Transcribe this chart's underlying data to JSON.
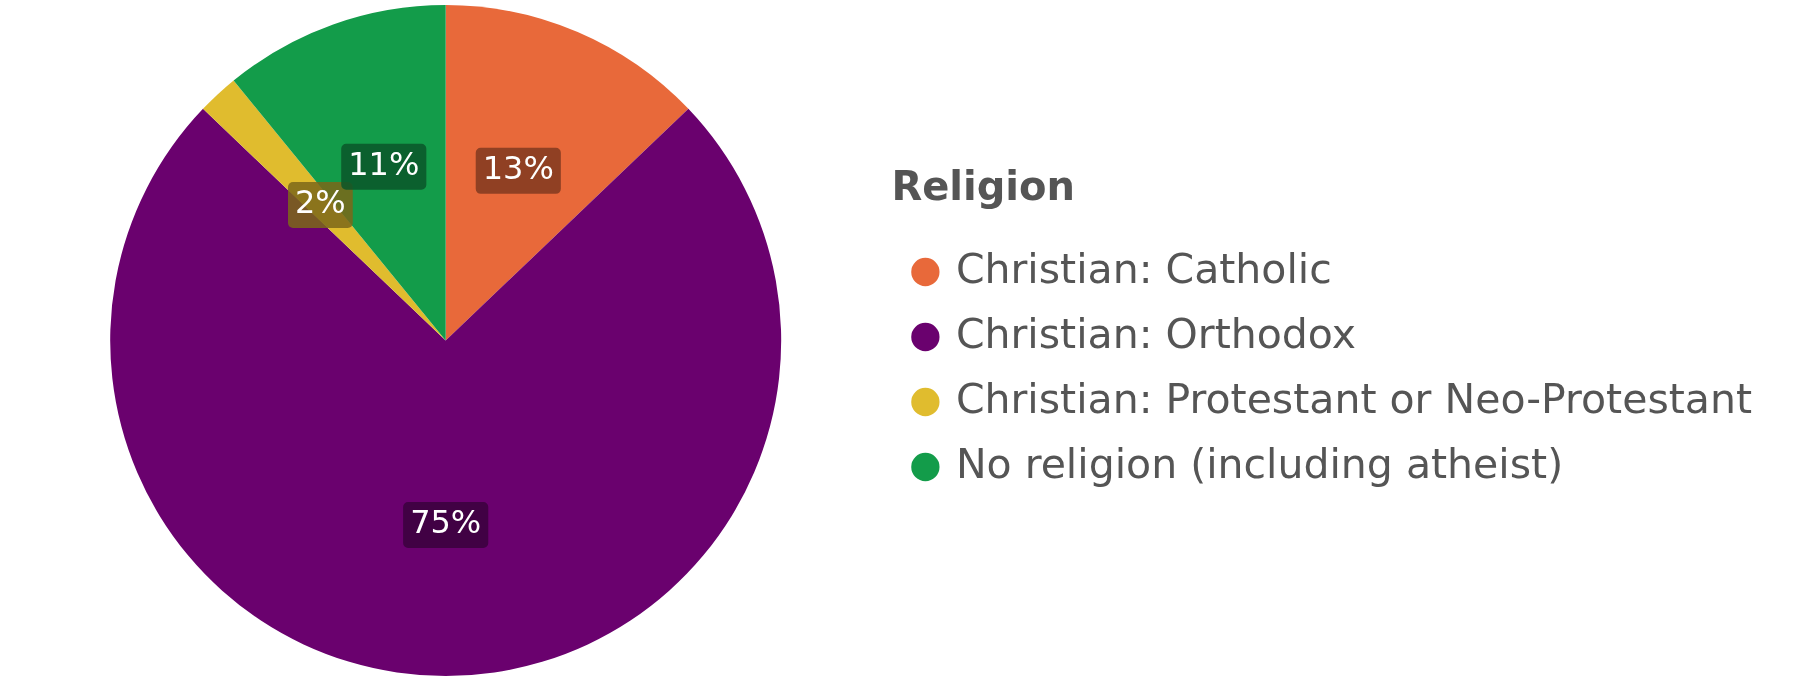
{
  "chart_data": {
    "type": "pie",
    "legend_title": "Religion",
    "legend": "right",
    "value_labels": [
      "13%",
      "75%",
      "2%",
      "11%"
    ],
    "categories": [
      "Christian: Catholic",
      "Christian: Orthodox",
      "Christian: Protestant or Neo-Protestant",
      "No religion (including atheist)"
    ],
    "values": [
      13,
      75,
      2,
      11
    ],
    "colors": [
      "#e8693a",
      "#6a016e",
      "#e0bc2e",
      "#139c4a"
    ]
  }
}
